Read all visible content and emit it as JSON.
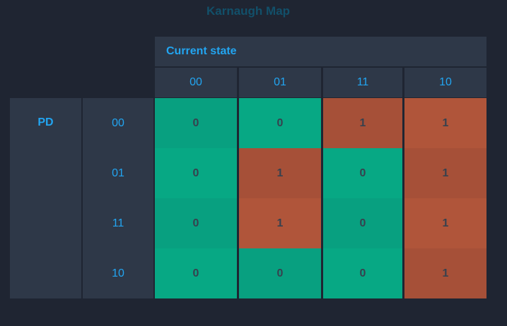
{
  "title": "Karnaugh Map",
  "header": "Current state",
  "row_var": "PD",
  "columns": [
    "00",
    "01",
    "11",
    "10"
  ],
  "rows": [
    {
      "label": "00",
      "values": [
        "0",
        "0",
        "1",
        "1"
      ]
    },
    {
      "label": "01",
      "values": [
        "0",
        "1",
        "0",
        "1"
      ]
    },
    {
      "label": "11",
      "values": [
        "0",
        "1",
        "0",
        "1"
      ]
    },
    {
      "label": "10",
      "values": [
        "0",
        "0",
        "0",
        "1"
      ]
    }
  ],
  "colors": {
    "zero": "#07a884",
    "zero_alt": "#08a080",
    "one": "#b0553a",
    "one_alt": "#a65038",
    "header_bg": "#2e3848",
    "accent": "#22a5f1"
  }
}
